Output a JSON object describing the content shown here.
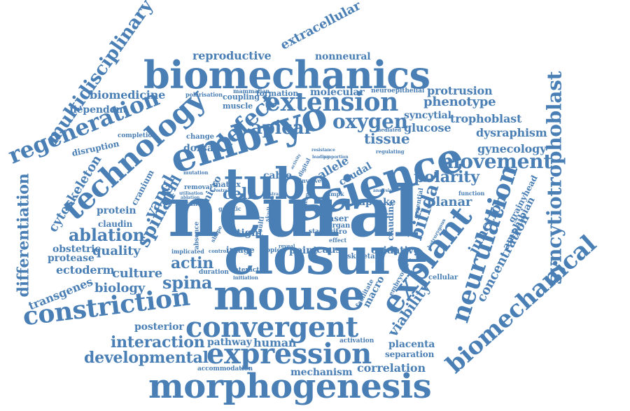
{
  "colors": {
    "word": "#4a7fb5",
    "background": "#ffffff"
  },
  "words": [
    "neural",
    "closure",
    "mouse",
    "embryo",
    "tube",
    "science",
    "biomechanics",
    "morphogenesis",
    "explant",
    "technology",
    "convergent",
    "expression",
    "constriction",
    "neurulation",
    "extension",
    "biomechanical",
    "regeneration",
    "defect",
    "syncytiotrophoblast",
    "multidisciplinary",
    "differentiation",
    "apical",
    "oxygen",
    "movement",
    "bifida",
    "spina",
    "spinal",
    "ablation",
    "actin",
    "interaction",
    "developmental",
    "cytoskeleton",
    "extracellular",
    "trophoblast",
    "phenotype",
    "polarity",
    "junction",
    "concentration",
    "viability",
    "transgenes",
    "culture",
    "quality",
    "biology",
    "ectoderm",
    "protrusion",
    "dysraphism",
    "gynecology",
    "tissue",
    "glucose",
    "syncytial",
    "planar",
    "human",
    "placenta",
    "correlation",
    "posterior",
    "reproductive",
    "nonneural",
    "molecular",
    "biomedicine",
    "dependent",
    "cell",
    "vangl",
    "grhl",
    "uptake",
    "allele",
    "cable",
    "caudal",
    "tight",
    "point",
    "cause",
    "oxidative",
    "protein",
    "claudin",
    "obstetric",
    "protease",
    "mechanism",
    "separation",
    "pathway",
    "activation",
    "accommodation",
    "amphibian",
    "grainyhead",
    "disruption",
    "completion",
    "formation",
    "coupling",
    "muscle",
    "mammalian",
    "neuroepithelial",
    "polarisation",
    "change",
    "dorsal",
    "cranium",
    "mutation",
    "removal",
    "matrix",
    "micro",
    "mutant",
    "ablation",
    "utilisation",
    "genetic",
    "absence",
    "shape",
    "implicated",
    "control",
    "image",
    "interact",
    "initiation",
    "duration",
    "topic",
    "reveal",
    "skeletal",
    "macro",
    "facilitate",
    "cellular",
    "vertebrate",
    "embryonic",
    "effect",
    "stage",
    "vitro",
    "organ",
    "laser",
    "claudins",
    "essential",
    "function",
    "hetrozygous",
    "analysis",
    "involve",
    "regulating",
    "mediated",
    "resistance",
    "proportion",
    "leading",
    "digital",
    "activity",
    "rostral",
    "ampk",
    "multi",
    "skull",
    "bone",
    "strain",
    "trophectoderm"
  ]
}
